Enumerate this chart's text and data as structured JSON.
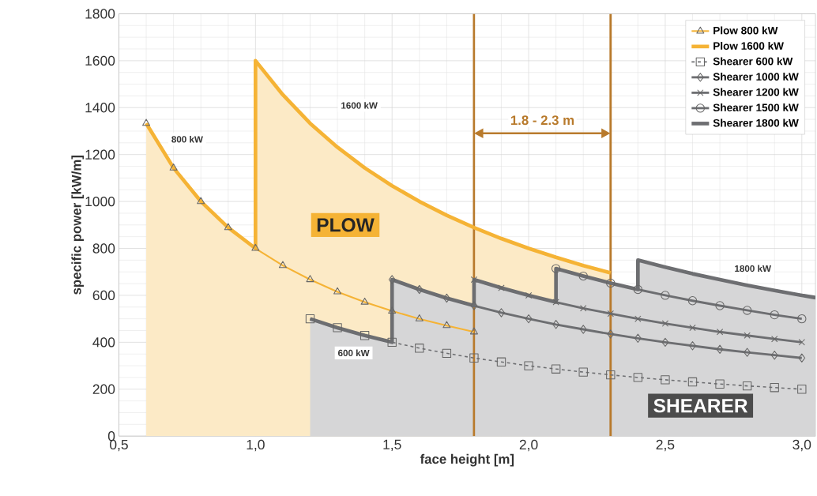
{
  "chart_data": {
    "type": "line",
    "xlabel": "face height [m]",
    "ylabel": "specific power [kW/m]",
    "xlim": [
      0.5,
      3.05
    ],
    "ylim": [
      0,
      1800
    ],
    "xticks": [
      {
        "value": 0.5,
        "label": "0,5"
      },
      {
        "value": 1.0,
        "label": "1,0"
      },
      {
        "value": 1.5,
        "label": "1,5"
      },
      {
        "value": 2.0,
        "label": "2,0"
      },
      {
        "value": 2.5,
        "label": "2,5"
      },
      {
        "value": 3.0,
        "label": "3,0"
      }
    ],
    "yticks": [
      0,
      200,
      400,
      600,
      800,
      1000,
      1200,
      1400,
      1600,
      1800
    ],
    "grid": true,
    "legend": "top right",
    "series": [
      {
        "name": "Plow 800 kW",
        "color": "#f5b335",
        "marker": "triangle",
        "line_style": "solid",
        "x": [
          0.6,
          0.7,
          0.8,
          0.9,
          1.0,
          1.1,
          1.2,
          1.3,
          1.4,
          1.5,
          1.6,
          1.7,
          1.8
        ],
        "values": [
          1333,
          1143,
          1000,
          889,
          800,
          727,
          667,
          615,
          571,
          533,
          500,
          471,
          444
        ]
      },
      {
        "name": "Plow 1600 kW",
        "type": "area",
        "color": "#f5b335",
        "marker": "none",
        "line_style": "solid",
        "x": [
          0.6,
          0.7,
          0.8,
          0.9,
          1.0,
          1.0,
          1.1,
          1.2,
          1.3,
          1.4,
          1.5,
          1.6,
          1.7,
          1.8,
          1.9,
          2.0,
          2.1,
          2.2,
          2.3
        ],
        "values": [
          1333,
          1143,
          1000,
          889,
          800,
          1600,
          1455,
          1333,
          1231,
          1143,
          1067,
          1000,
          941,
          889,
          842,
          800,
          762,
          727,
          696
        ]
      },
      {
        "name": "Shearer 600 kW",
        "color": "#6d6e71",
        "marker": "square",
        "line_style": "dashed",
        "x": [
          1.2,
          1.3,
          1.4,
          1.5,
          1.6,
          1.7,
          1.8,
          1.9,
          2.0,
          2.1,
          2.2,
          2.3,
          2.4,
          2.5,
          2.6,
          2.7,
          2.8,
          2.9,
          3.0
        ],
        "values": [
          500,
          462,
          429,
          400,
          375,
          353,
          333,
          316,
          300,
          286,
          273,
          261,
          250,
          240,
          231,
          222,
          214,
          207,
          200
        ]
      },
      {
        "name": "Shearer 1000 kW",
        "color": "#6d6e71",
        "marker": "diamond",
        "line_style": "solid",
        "x": [
          1.5,
          1.6,
          1.7,
          1.8,
          1.9,
          2.0,
          2.1,
          2.2,
          2.3,
          2.4,
          2.5,
          2.6,
          2.7,
          2.8,
          2.9,
          3.0
        ],
        "values": [
          667,
          625,
          588,
          556,
          526,
          500,
          476,
          455,
          435,
          417,
          400,
          385,
          370,
          357,
          345,
          333
        ]
      },
      {
        "name": "Shearer 1200 kW",
        "color": "#6d6e71",
        "marker": "cross",
        "line_style": "solid",
        "x": [
          1.8,
          1.9,
          2.0,
          2.1,
          2.2,
          2.3,
          2.4,
          2.5,
          2.6,
          2.7,
          2.8,
          2.9,
          3.0
        ],
        "values": [
          667,
          632,
          600,
          571,
          545,
          522,
          500,
          480,
          462,
          444,
          429,
          414,
          400
        ]
      },
      {
        "name": "Shearer 1500 kW",
        "color": "#6d6e71",
        "marker": "circle",
        "line_style": "solid",
        "x": [
          2.1,
          2.2,
          2.3,
          2.4,
          2.5,
          2.6,
          2.7,
          2.8,
          2.9,
          3.0
        ],
        "values": [
          714,
          682,
          652,
          625,
          600,
          577,
          556,
          536,
          517,
          500
        ]
      },
      {
        "name": "Shearer 1800 kW",
        "type": "area",
        "color": "#6d6e71",
        "marker": "none",
        "line_style": "solid",
        "x": [
          1.2,
          1.3,
          1.4,
          1.5,
          1.5,
          1.6,
          1.7,
          1.8,
          1.8,
          1.9,
          2.0,
          2.1,
          2.1,
          2.2,
          2.3,
          2.4,
          2.4,
          2.5,
          2.6,
          2.7,
          2.8,
          2.9,
          3.0,
          3.05
        ],
        "values": [
          500,
          462,
          429,
          400,
          667,
          625,
          588,
          556,
          667,
          632,
          600,
          571,
          714,
          682,
          652,
          625,
          750,
          720,
          692,
          667,
          643,
          621,
          600,
          590
        ]
      }
    ],
    "ref_lines": [
      {
        "axis": "x",
        "value": 1.8,
        "color": "#b87a2c"
      },
      {
        "axis": "x",
        "value": 2.3,
        "color": "#b87a2c"
      }
    ],
    "annotations": [
      "800 kW",
      "1600 kW",
      "600 kW",
      "1800 kW",
      "PLOW",
      "SHEARER",
      "1.8 - 2.3 m"
    ]
  }
}
